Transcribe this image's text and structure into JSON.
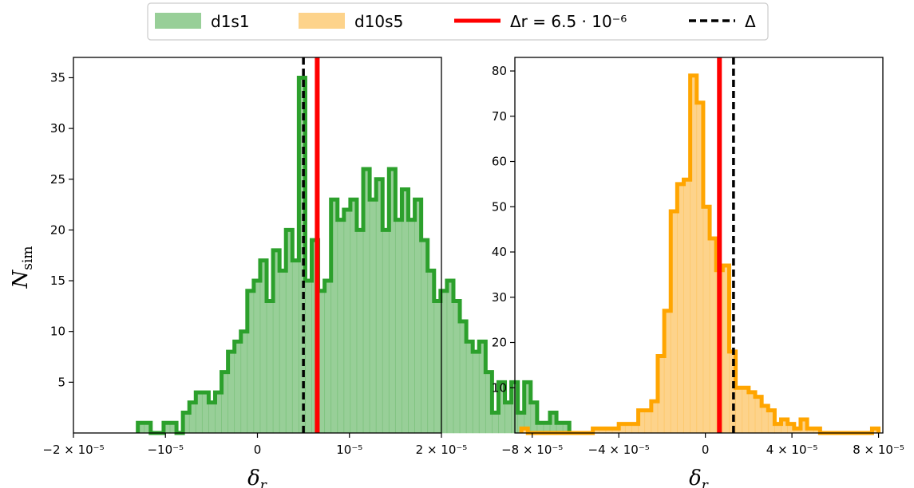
{
  "legend": {
    "location": "top-center",
    "items": [
      {
        "label": "d1s1",
        "kind": "patch",
        "color": "#98cf98"
      },
      {
        "label": "d10s5",
        "kind": "patch",
        "color": "#fdd38b"
      },
      {
        "label": "Δr = 6.5 · 10⁻⁶",
        "kind": "line",
        "color": "#ff0000"
      },
      {
        "label": "Δ",
        "kind": "dashed",
        "color": "#000000"
      }
    ]
  },
  "chart_data": [
    {
      "type": "bar",
      "subtype": "step-histogram",
      "series_name": "d1s1",
      "fill_color": "#98cf98",
      "edge_color": "#2ca02c",
      "bin_width": 7e-07,
      "bin_start": -1.3e-05,
      "counts": [
        1,
        1,
        0,
        0,
        1,
        1,
        0,
        2,
        3,
        4,
        4,
        3,
        4,
        6,
        8,
        9,
        10,
        14,
        15,
        17,
        13,
        18,
        16,
        20,
        17,
        35,
        15,
        19,
        14,
        15,
        23,
        21,
        22,
        23,
        20,
        26,
        23,
        25,
        20,
        26,
        21,
        24,
        21,
        23,
        19,
        16,
        13,
        14,
        15,
        13,
        11,
        9,
        8,
        9,
        6,
        2,
        5,
        3,
        5,
        2,
        5,
        3,
        1,
        1,
        2,
        1,
        1,
        0,
        0
      ],
      "xlim": [
        -2e-05,
        2e-05
      ],
      "ylim": [
        0,
        37
      ],
      "xticks": [
        {
          "value": -2e-05,
          "label": "−2 × 10⁻⁵"
        },
        {
          "value": -1e-05,
          "label": "−10⁻⁵"
        },
        {
          "value": 0,
          "label": "0"
        },
        {
          "value": 1e-05,
          "label": "10⁻⁵"
        },
        {
          "value": 2e-05,
          "label": "2 × 10⁻⁵"
        }
      ],
      "yticks": [
        5,
        10,
        15,
        20,
        25,
        30,
        35
      ],
      "xlabel": "δr",
      "ylabel": "Nsim",
      "vlines": [
        {
          "x": 6.5e-06,
          "style": "solid",
          "color": "#ff0000",
          "label": "Δr"
        },
        {
          "x": 5e-06,
          "style": "dashed",
          "color": "#000000",
          "label": "Δ"
        }
      ]
    },
    {
      "type": "bar",
      "subtype": "step-histogram",
      "series_name": "d10s5",
      "fill_color": "#fdd38b",
      "edge_color": "#ffa500",
      "bin_width": 3e-06,
      "bin_start": -8.5e-05,
      "counts": [
        1,
        0,
        0,
        0,
        0,
        0,
        0,
        0,
        0,
        0,
        0,
        1,
        1,
        1,
        1,
        2,
        2,
        2,
        5,
        5,
        7,
        17,
        27,
        49,
        55,
        56,
        79,
        73,
        50,
        43,
        36,
        37,
        18,
        10,
        10,
        9,
        8,
        6,
        5,
        2,
        3,
        2,
        1,
        3,
        1,
        1,
        0,
        0,
        0,
        0,
        0,
        0,
        0,
        0,
        1
      ],
      "xlim": [
        -8.8e-05,
        8.2e-05
      ],
      "ylim": [
        0,
        83
      ],
      "xticks": [
        {
          "value": -8e-05,
          "label": "−8 × 10⁻⁵"
        },
        {
          "value": -4e-05,
          "label": "−4 × 10⁻⁵"
        },
        {
          "value": 0,
          "label": "0"
        },
        {
          "value": 4e-05,
          "label": "4 × 10⁻⁵"
        },
        {
          "value": 8e-05,
          "label": "8 × 10⁻⁵"
        }
      ],
      "yticks": [
        10,
        20,
        30,
        40,
        50,
        60,
        70,
        80
      ],
      "xlabel": "δr",
      "ylabel": "",
      "vlines": [
        {
          "x": 6.5e-06,
          "style": "solid",
          "color": "#ff0000",
          "label": "Δr"
        },
        {
          "x": 1.3e-05,
          "style": "dashed",
          "color": "#000000",
          "label": "Δ"
        }
      ]
    }
  ]
}
